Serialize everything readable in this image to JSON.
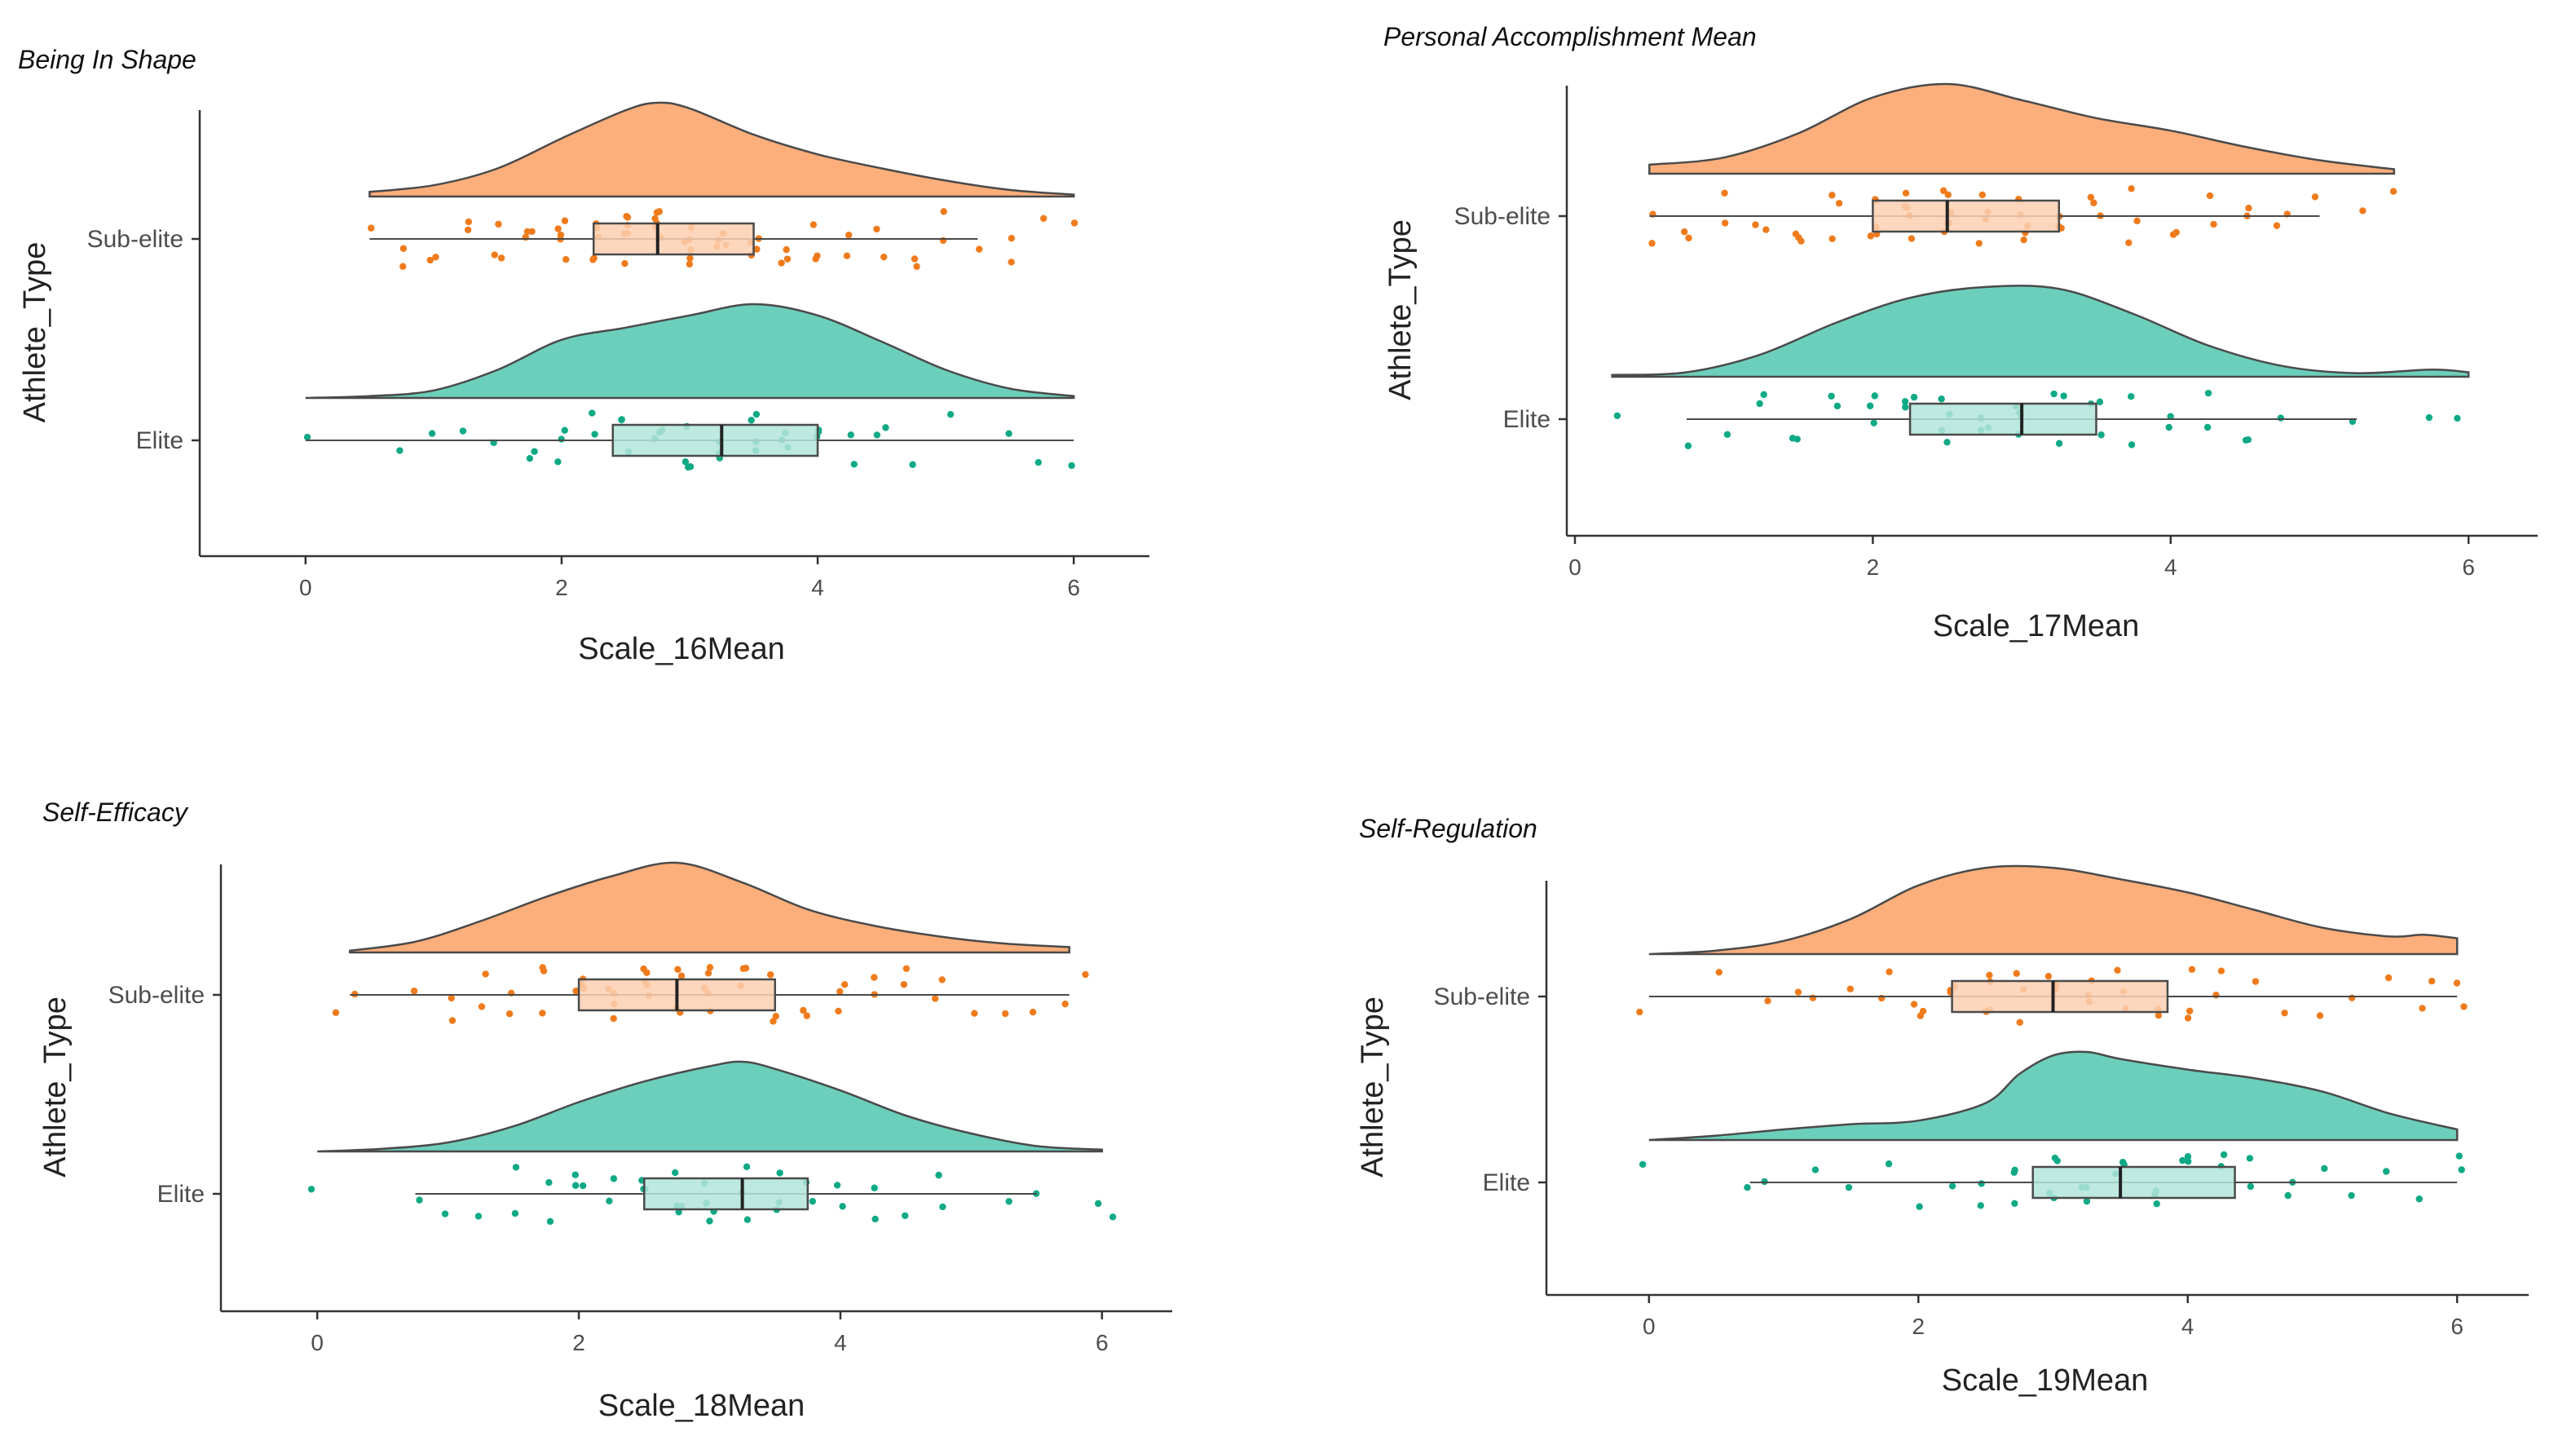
{
  "colors": {
    "sub_elite_fill": "#fcae7b",
    "sub_elite_points": "#f07b1c",
    "sub_elite_box": "#fdd0b2",
    "elite_fill": "#6ccfbb",
    "elite_points": "#10a986",
    "elite_box": "#b3e5da",
    "axis": "#333333",
    "outline": "#4a4a4a"
  },
  "chart_data": [
    {
      "type": "raincloud",
      "title": "Being In Shape",
      "xlabel": "Scale_16Mean",
      "ylabel": "Athlete_Type",
      "xlim": [
        -0.4,
        6.4
      ],
      "xticks": [
        "0",
        "2",
        "4",
        "6"
      ],
      "grid": false,
      "categories": [
        "Sub-elite",
        "Elite"
      ],
      "series": [
        {
          "name": "Sub-elite",
          "min": 0.5,
          "q1": 2.25,
          "median": 2.75,
          "q3": 3.5,
          "max": 5.25,
          "density_range": [
            0.5,
            6
          ],
          "density_x": [
            0.5,
            1,
            1.5,
            2,
            2.5,
            2.75,
            3,
            3.5,
            4,
            4.5,
            5,
            5.5,
            6
          ],
          "density_y": [
            0.05,
            0.12,
            0.3,
            0.62,
            0.92,
            1.0,
            0.94,
            0.66,
            0.45,
            0.3,
            0.17,
            0.07,
            0.02
          ],
          "points": [
            0.5,
            0.75,
            0.75,
            1,
            1,
            1.25,
            1.25,
            1.5,
            1.5,
            1.5,
            1.75,
            1.75,
            1.75,
            2,
            2,
            2,
            2,
            2,
            2.25,
            2.25,
            2.25,
            2.25,
            2.25,
            2.5,
            2.5,
            2.5,
            2.5,
            2.5,
            2.5,
            2.75,
            2.75,
            2.75,
            2.75,
            2.75,
            2.75,
            3,
            3,
            3,
            3,
            3,
            3,
            3.25,
            3.25,
            3.25,
            3.25,
            3.5,
            3.5,
            3.5,
            3.5,
            3.75,
            3.75,
            3.75,
            4,
            4,
            4,
            4.25,
            4.25,
            4.5,
            4.5,
            4.75,
            4.75,
            5,
            5,
            5.25,
            5.5,
            5.5,
            5.75,
            6
          ]
        },
        {
          "name": "Elite",
          "min": 0,
          "q1": 2.4,
          "median": 3.25,
          "q3": 4,
          "max": 6,
          "density_range": [
            0,
            6
          ],
          "density_x": [
            0,
            0.5,
            1,
            1.5,
            2,
            2.5,
            3,
            3.5,
            4,
            4.5,
            5,
            5.5,
            6
          ],
          "density_y": [
            0.0,
            0.02,
            0.08,
            0.3,
            0.62,
            0.75,
            0.88,
            1.0,
            0.88,
            0.6,
            0.3,
            0.1,
            0.02
          ],
          "points": [
            0,
            0.75,
            1,
            1.25,
            1.5,
            1.75,
            1.75,
            2,
            2,
            2,
            2.25,
            2.25,
            2.5,
            2.5,
            2.5,
            2.75,
            2.75,
            2.75,
            3,
            3,
            3,
            3,
            3.25,
            3.25,
            3.25,
            3.5,
            3.5,
            3.5,
            3.5,
            3.75,
            3.75,
            3.75,
            4,
            4,
            4,
            4.25,
            4.25,
            4.5,
            4.5,
            4.75,
            5,
            5.5,
            5.75,
            6
          ]
        }
      ]
    },
    {
      "type": "raincloud",
      "title": "Personal Accomplishment Mean",
      "xlabel": "Scale_17Mean",
      "ylabel": "Athlete_Type",
      "xlim": [
        0,
        6.3
      ],
      "xticks": [
        "0",
        "2",
        "4",
        "6"
      ],
      "grid": false,
      "categories": [
        "Sub-elite",
        "Elite"
      ],
      "series": [
        {
          "name": "Sub-elite",
          "min": 0.5,
          "q1": 2,
          "median": 2.5,
          "q3": 3.25,
          "max": 5,
          "density_range": [
            0.5,
            5.5
          ],
          "density_x": [
            0.5,
            1,
            1.5,
            2,
            2.5,
            3,
            3.5,
            4,
            4.5,
            5,
            5.5
          ],
          "density_y": [
            0.1,
            0.18,
            0.45,
            0.85,
            1.0,
            0.82,
            0.62,
            0.48,
            0.3,
            0.15,
            0.05
          ],
          "points": [
            0.5,
            0.5,
            0.75,
            0.75,
            1,
            1,
            1.25,
            1.25,
            1.5,
            1.5,
            1.5,
            1.75,
            1.75,
            1.75,
            2,
            2,
            2,
            2,
            2,
            2.25,
            2.25,
            2.25,
            2.25,
            2.25,
            2.5,
            2.5,
            2.5,
            2.5,
            2.5,
            2.5,
            2.75,
            2.75,
            2.75,
            2.75,
            3,
            3,
            3,
            3,
            3,
            3.25,
            3.25,
            3.25,
            3.5,
            3.5,
            3.5,
            3.75,
            3.75,
            3.75,
            4,
            4,
            4.25,
            4.25,
            4.5,
            4.5,
            4.75,
            4.75,
            5,
            5.25,
            5.5
          ]
        },
        {
          "name": "Elite",
          "min": 0.75,
          "q1": 2.25,
          "median": 3,
          "q3": 3.5,
          "max": 5.25,
          "density_range": [
            0.25,
            6
          ],
          "density_x": [
            0.25,
            0.75,
            1.25,
            1.75,
            2.25,
            2.75,
            3.25,
            3.75,
            4.25,
            4.75,
            5.25,
            5.75,
            6
          ],
          "density_y": [
            0.02,
            0.05,
            0.25,
            0.6,
            0.88,
            1.0,
            0.98,
            0.7,
            0.35,
            0.12,
            0.04,
            0.08,
            0.05
          ],
          "points": [
            0.25,
            0.75,
            1,
            1.25,
            1.25,
            1.5,
            1.5,
            1.75,
            1.75,
            2,
            2,
            2,
            2.25,
            2.25,
            2.25,
            2.5,
            2.5,
            2.5,
            2.5,
            2.75,
            2.75,
            2.75,
            3,
            3,
            3,
            3,
            3.25,
            3.25,
            3.25,
            3.5,
            3.5,
            3.5,
            3.75,
            3.75,
            4,
            4,
            4.25,
            4.25,
            4.5,
            4.5,
            4.75,
            5.25,
            5.75,
            5.9
          ]
        }
      ]
    },
    {
      "type": "raincloud",
      "title": "Self-Efficacy",
      "xlabel": "Scale_18Mean",
      "ylabel": "Athlete_Type",
      "xlim": [
        -0.35,
        6.35
      ],
      "xticks": [
        "0",
        "2",
        "4",
        "6"
      ],
      "grid": false,
      "categories": [
        "Sub-elite",
        "Elite"
      ],
      "series": [
        {
          "name": "Sub-elite",
          "min": 0.25,
          "q1": 2,
          "median": 2.75,
          "q3": 3.5,
          "max": 5.75,
          "density_range": [
            0.25,
            5.75
          ],
          "density_x": [
            0.25,
            0.75,
            1.25,
            1.75,
            2.25,
            2.75,
            3.25,
            3.75,
            4.25,
            4.75,
            5.25,
            5.75
          ],
          "density_y": [
            0.02,
            0.12,
            0.35,
            0.62,
            0.85,
            1.0,
            0.78,
            0.48,
            0.3,
            0.18,
            0.1,
            0.06
          ],
          "points": [
            0.15,
            0.25,
            0.75,
            1,
            1,
            1.25,
            1.25,
            1.5,
            1.5,
            1.75,
            1.75,
            1.75,
            2,
            2,
            2,
            2,
            2.25,
            2.25,
            2.25,
            2.25,
            2.5,
            2.5,
            2.5,
            2.5,
            2.5,
            2.75,
            2.75,
            2.75,
            2.75,
            3,
            3,
            3,
            3,
            3,
            3.25,
            3.25,
            3.25,
            3.5,
            3.5,
            3.5,
            3.75,
            3.75,
            4,
            4,
            4,
            4.25,
            4.25,
            4.5,
            4.5,
            4.75,
            4.75,
            5,
            5.25,
            5.5,
            5.75,
            5.85
          ]
        },
        {
          "name": "Elite",
          "min": 0.75,
          "q1": 2.5,
          "median": 3.25,
          "q3": 3.75,
          "max": 5.5,
          "density_range": [
            0,
            6
          ],
          "density_x": [
            0,
            0.5,
            1,
            1.5,
            2,
            2.5,
            3,
            3.25,
            3.5,
            4,
            4.5,
            5,
            5.5,
            6
          ],
          "density_y": [
            0.0,
            0.03,
            0.1,
            0.28,
            0.55,
            0.78,
            0.95,
            1.0,
            0.92,
            0.68,
            0.4,
            0.2,
            0.06,
            0.02
          ],
          "points": [
            -0.05,
            0.75,
            1,
            1.25,
            1.5,
            1.5,
            1.75,
            1.75,
            2,
            2,
            2,
            2.25,
            2.25,
            2.5,
            2.5,
            2.5,
            2.75,
            2.75,
            2.75,
            2.75,
            3,
            3,
            3,
            3,
            3.25,
            3.25,
            3.25,
            3.5,
            3.5,
            3.5,
            3.75,
            3.75,
            4,
            4,
            4.25,
            4.25,
            4.5,
            4.75,
            4.75,
            5.25,
            5.5,
            6,
            6.05
          ]
        }
      ]
    },
    {
      "type": "raincloud",
      "title": "Self-Regulation",
      "xlabel": "Scale_19Mean",
      "ylabel": "Athlete_Type",
      "xlim": [
        -0.35,
        6.35
      ],
      "xticks": [
        "0",
        "2",
        "4",
        "6"
      ],
      "grid": false,
      "categories": [
        "Sub-elite",
        "Elite"
      ],
      "series": [
        {
          "name": "Sub-elite",
          "min": 0,
          "q1": 2.25,
          "median": 3,
          "q3": 3.85,
          "max": 6,
          "density_range": [
            0,
            6
          ],
          "density_x": [
            0,
            0.5,
            1,
            1.5,
            2,
            2.5,
            3,
            3.5,
            4,
            4.5,
            5,
            5.5,
            5.75,
            6
          ],
          "density_y": [
            0.0,
            0.04,
            0.15,
            0.4,
            0.78,
            0.98,
            0.98,
            0.85,
            0.7,
            0.5,
            0.3,
            0.2,
            0.22,
            0.18
          ],
          "points": [
            -0.05,
            0.5,
            0.9,
            1.1,
            1.25,
            1.5,
            1.75,
            1.75,
            2,
            2,
            2,
            2.25,
            2.25,
            2.25,
            2.5,
            2.5,
            2.5,
            2.5,
            2.75,
            2.75,
            2.75,
            3,
            3,
            3,
            3,
            3.25,
            3.25,
            3.25,
            3.5,
            3.5,
            3.5,
            3.75,
            3.75,
            4,
            4,
            4,
            4.25,
            4.25,
            4.5,
            4.75,
            5,
            5.25,
            5.5,
            5.75,
            5.85,
            6,
            6.05
          ]
        },
        {
          "name": "Elite",
          "min": 0.75,
          "q1": 2.85,
          "median": 3.5,
          "q3": 4.35,
          "max": 6,
          "density_range": [
            0,
            6
          ],
          "density_x": [
            0,
            0.5,
            1,
            1.5,
            2,
            2.5,
            2.75,
            3,
            3.25,
            3.5,
            4,
            4.5,
            5,
            5.5,
            6
          ],
          "density_y": [
            0.0,
            0.05,
            0.12,
            0.18,
            0.22,
            0.42,
            0.75,
            0.96,
            1.0,
            0.92,
            0.8,
            0.7,
            0.55,
            0.3,
            0.12
          ],
          "points": [
            -0.05,
            0.75,
            0.85,
            1.25,
            1.5,
            1.75,
            2,
            2.25,
            2.5,
            2.5,
            2.75,
            2.75,
            2.75,
            3,
            3,
            3,
            3,
            3.25,
            3.25,
            3.25,
            3.5,
            3.5,
            3.5,
            3.75,
            3.75,
            3.75,
            4,
            4,
            4,
            4.25,
            4.25,
            4.5,
            4.5,
            4.75,
            4.75,
            5,
            5.25,
            5.5,
            5.75,
            6,
            6.05
          ]
        }
      ]
    }
  ]
}
